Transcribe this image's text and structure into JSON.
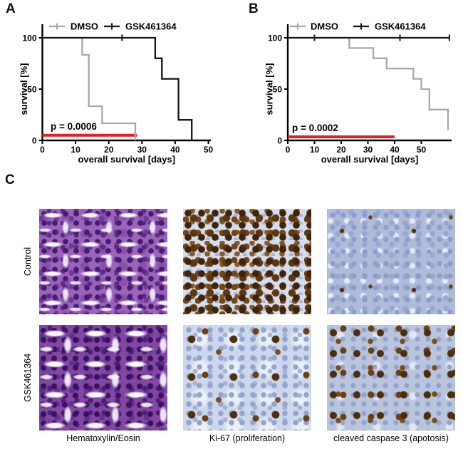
{
  "figure": {
    "panel_labels": {
      "a": "A",
      "b": "B",
      "c": "C"
    }
  },
  "colors": {
    "dmso_curve": "#a8a8a8",
    "gsk461364_curve": "#141414",
    "significance_line": "#ec1c24"
  },
  "chart_data": [
    {
      "panel": "A",
      "type": "line",
      "chart_style": "kaplan_meier_step",
      "title": "",
      "xlabel": "overall survival [days]",
      "ylabel": "survival [%]",
      "xlim": [
        0,
        50
      ],
      "xticks": [
        0,
        10,
        20,
        30,
        40,
        50
      ],
      "ylim": [
        0,
        100
      ],
      "yticks": [
        0,
        50,
        100
      ],
      "grid": false,
      "legend_position": "top",
      "p_value_label": "p = 0.0006",
      "significance_line": {
        "x_start": 0,
        "x_end": 28.5,
        "y": 5,
        "color": "#ec1c24"
      },
      "series": [
        {
          "name": "DMSO",
          "color": "#a8a8a8",
          "step_points": [
            [
              0,
              100
            ],
            [
              12,
              100
            ],
            [
              12,
              83.3
            ],
            [
              14,
              83.3
            ],
            [
              14,
              33.3
            ],
            [
              18,
              33.3
            ],
            [
              18,
              16.7
            ],
            [
              28,
              16.7
            ],
            [
              28,
              0
            ]
          ],
          "censor_marks": []
        },
        {
          "name": "GSK461364",
          "color": "#141414",
          "step_points": [
            [
              0,
              100
            ],
            [
              34,
              100
            ],
            [
              34,
              80
            ],
            [
              36,
              80
            ],
            [
              36,
              60
            ],
            [
              41,
              60
            ],
            [
              41,
              20
            ],
            [
              45,
              20
            ],
            [
              45,
              0
            ]
          ],
          "censor_marks": [
            [
              24,
              100
            ]
          ]
        }
      ]
    },
    {
      "panel": "B",
      "type": "line",
      "chart_style": "kaplan_meier_step",
      "title": "",
      "xlabel": "overall survival [days]",
      "ylabel": "survival [%]",
      "xlim": [
        0,
        61
      ],
      "xticks": [
        0,
        10,
        20,
        30,
        40,
        50
      ],
      "ylim": [
        0,
        100
      ],
      "yticks": [
        0,
        50,
        100
      ],
      "grid": false,
      "legend_position": "top",
      "p_value_label": "p = 0.0002",
      "significance_line": {
        "x_start": 0,
        "x_end": 40,
        "y": 3.5,
        "color": "#ec1c24"
      },
      "series": [
        {
          "name": "DMSO",
          "color": "#a8a8a8",
          "step_points": [
            [
              0,
              100
            ],
            [
              23,
              100
            ],
            [
              23,
              90
            ],
            [
              32,
              90
            ],
            [
              32,
              80
            ],
            [
              37,
              80
            ],
            [
              37,
              70
            ],
            [
              47,
              70
            ],
            [
              47,
              60
            ],
            [
              50,
              60
            ],
            [
              50,
              50
            ],
            [
              53,
              50
            ],
            [
              53,
              30
            ],
            [
              60,
              30
            ],
            [
              60,
              10
            ]
          ],
          "censor_marks": []
        },
        {
          "name": "GSK461364",
          "color": "#141414",
          "step_points": [
            [
              0,
              100
            ],
            [
              60.5,
              100
            ]
          ],
          "censor_marks": [
            [
              10,
              100
            ],
            [
              42,
              100
            ],
            [
              60.5,
              100
            ]
          ]
        }
      ]
    }
  ],
  "histology": {
    "row_labels": [
      "Control",
      "GSK461364"
    ],
    "column_captions": [
      "Hematoxylin/Eosin",
      "Ki-67 (proliferation)",
      "cleaved caspase 3 (apotosis)"
    ],
    "tiles": [
      {
        "row": "Control",
        "column": "Hematoxylin/Eosin",
        "appearance": "purple tissue with white clefts"
      },
      {
        "row": "Control",
        "column": "Ki-67 (proliferation)",
        "appearance": "dense brown-stained nuclei"
      },
      {
        "row": "Control",
        "column": "cleaved caspase 3 (apotosis)",
        "appearance": "blue tissue, very few brown cells"
      },
      {
        "row": "GSK461364",
        "column": "Hematoxylin/Eosin",
        "appearance": "dense dark purple tissue"
      },
      {
        "row": "GSK461364",
        "column": "Ki-67 (proliferation)",
        "appearance": "mostly blue, scattered brown nuclei"
      },
      {
        "row": "GSK461364",
        "column": "cleaved caspase 3 (apotosis)",
        "appearance": "many brown apoptotic cells"
      }
    ]
  }
}
